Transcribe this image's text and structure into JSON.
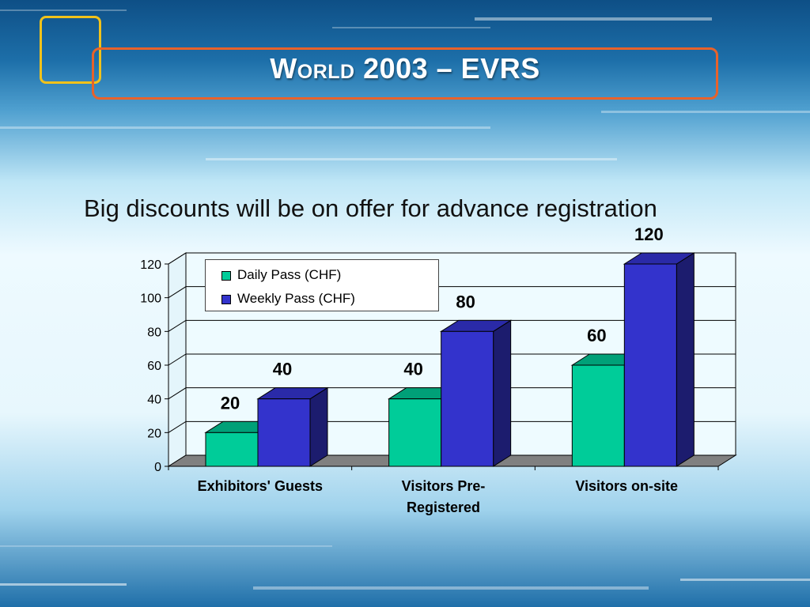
{
  "slide": {
    "title": "World 2003 – EVRS",
    "subtitle": "Big discounts will be on offer for advance registration"
  },
  "colors": {
    "daily": "#00cc99",
    "daily_top": "#00a078",
    "weekly": "#3333cc",
    "weekly_side": "#1c1c6e",
    "weekly_top": "#2a2aa8",
    "title_frame": "#e8622a",
    "square_deco": "#f2c21a"
  },
  "chart_data": {
    "type": "bar",
    "categories": [
      "Exhibitors' Guests",
      "Visitors Pre-Registered",
      "Visitors on-site"
    ],
    "category_lines": [
      [
        "Exhibitors' Guests"
      ],
      [
        "Visitors Pre-",
        "Registered"
      ],
      [
        "Visitors on-site"
      ]
    ],
    "series": [
      {
        "name": "Daily Pass (CHF)",
        "values": [
          20,
          40,
          60
        ],
        "labels": [
          "20",
          "40",
          "60"
        ]
      },
      {
        "name": "Weekly Pass (CHF)",
        "values": [
          40,
          80,
          120
        ],
        "labels": [
          "40",
          "80",
          "120"
        ]
      }
    ],
    "ylim": [
      0,
      120
    ],
    "yticks": [
      0,
      20,
      40,
      60,
      80,
      100,
      120
    ],
    "ytick_labels": [
      "0",
      "20",
      "40",
      "60",
      "80",
      "100",
      "120"
    ],
    "grid": true,
    "legend": "top-left",
    "style": "3d-clustered"
  }
}
